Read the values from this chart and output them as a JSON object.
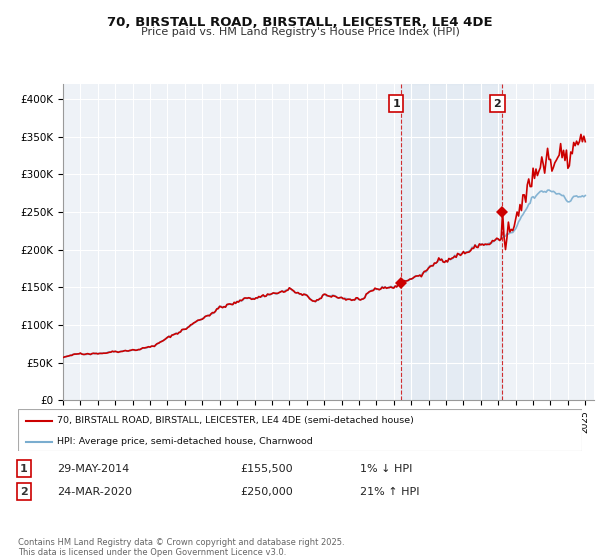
{
  "title": "70, BIRSTALL ROAD, BIRSTALL, LEICESTER, LE4 4DE",
  "subtitle": "Price paid vs. HM Land Registry's House Price Index (HPI)",
  "ylim": [
    0,
    420000
  ],
  "yticks": [
    0,
    50000,
    100000,
    150000,
    200000,
    250000,
    300000,
    350000,
    400000
  ],
  "ytick_labels": [
    "£0",
    "£50K",
    "£100K",
    "£150K",
    "£200K",
    "£250K",
    "£300K",
    "£350K",
    "£400K"
  ],
  "red_line_color": "#cc0000",
  "blue_line_color": "#7aadcf",
  "vline_color": "#cc0000",
  "grid_color": "#d0d8e0",
  "bg_color": "#ffffff",
  "chart_bg": "#f0f4f8",
  "legend_label_red": "70, BIRSTALL ROAD, BIRSTALL, LEICESTER, LE4 4DE (semi-detached house)",
  "legend_label_blue": "HPI: Average price, semi-detached house, Charnwood",
  "transaction1_date": "29-MAY-2014",
  "transaction1_price": "£155,500",
  "transaction1_hpi": "1% ↓ HPI",
  "transaction1_year": 2014.42,
  "transaction1_value": 155500,
  "transaction2_date": "24-MAR-2020",
  "transaction2_price": "£250,000",
  "transaction2_hpi": "21% ↑ HPI",
  "transaction2_year": 2020.23,
  "transaction2_value": 250000,
  "footer": "Contains HM Land Registry data © Crown copyright and database right 2025.\nThis data is licensed under the Open Government Licence v3.0."
}
